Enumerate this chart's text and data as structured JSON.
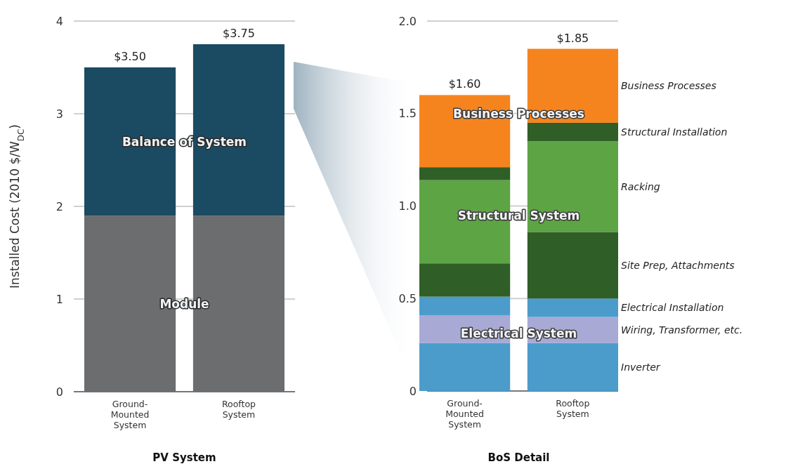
{
  "chart_data": [
    {
      "type": "bar",
      "stacked": true,
      "xlabel": "PV System",
      "ylabel": "Installed Cost (2010 $/W$_{DC}$)",
      "categories": [
        "Ground-Mounted System",
        "Rooftop System"
      ],
      "ylim": [
        0,
        4
      ],
      "yticks": [
        0,
        1,
        2,
        3,
        4
      ],
      "grid": "y",
      "legend": false,
      "totals": [
        "$3.50",
        "$3.75"
      ],
      "series": [
        {
          "name": "Module",
          "color": "#6b6d6e",
          "values": [
            1.9,
            1.9
          ]
        },
        {
          "name": "Balance of System",
          "color": "#1b4a63",
          "values": [
            1.6,
            1.85
          ]
        }
      ]
    },
    {
      "type": "bar",
      "stacked": true,
      "xlabel": "BoS Detail",
      "categories": [
        "Ground-Mounted System",
        "Rooftop System"
      ],
      "ylim": [
        0,
        2
      ],
      "yticks": [
        0,
        {
          "value": 0.5,
          "label": "0.5"
        },
        {
          "value": 1,
          "label": "1.0"
        },
        {
          "value": 1.5,
          "label": "1.5"
        },
        {
          "value": 2,
          "label": "2.0"
        }
      ],
      "grid": "y",
      "legend": "right",
      "totals": [
        "$1.60",
        "$1.85"
      ],
      "annotations": [
        "Business Processes",
        "Structural System",
        "Electrical System"
      ],
      "series": [
        {
          "name": "Inverter",
          "color": "#4b9ccb",
          "values": [
            0.26,
            0.26
          ]
        },
        {
          "name": "Wiring, Transformer, etc.",
          "color": "#a9a9d6",
          "values": [
            0.15,
            0.14
          ]
        },
        {
          "name": "Electrical Installation",
          "color": "#4b9ccb",
          "values": [
            0.1,
            0.1
          ]
        },
        {
          "name": "Site Prep, Attachments",
          "color": "#2f5f27",
          "values": [
            0.18,
            0.36
          ]
        },
        {
          "name": "Racking",
          "color": "#5da444",
          "values": [
            0.45,
            0.49
          ]
        },
        {
          "name": "Structural Installation",
          "color": "#2f5f27",
          "values": [
            0.07,
            0.1
          ]
        },
        {
          "name": "Business Processes",
          "color": "#f5841f",
          "values": [
            0.39,
            0.4
          ]
        }
      ]
    }
  ]
}
